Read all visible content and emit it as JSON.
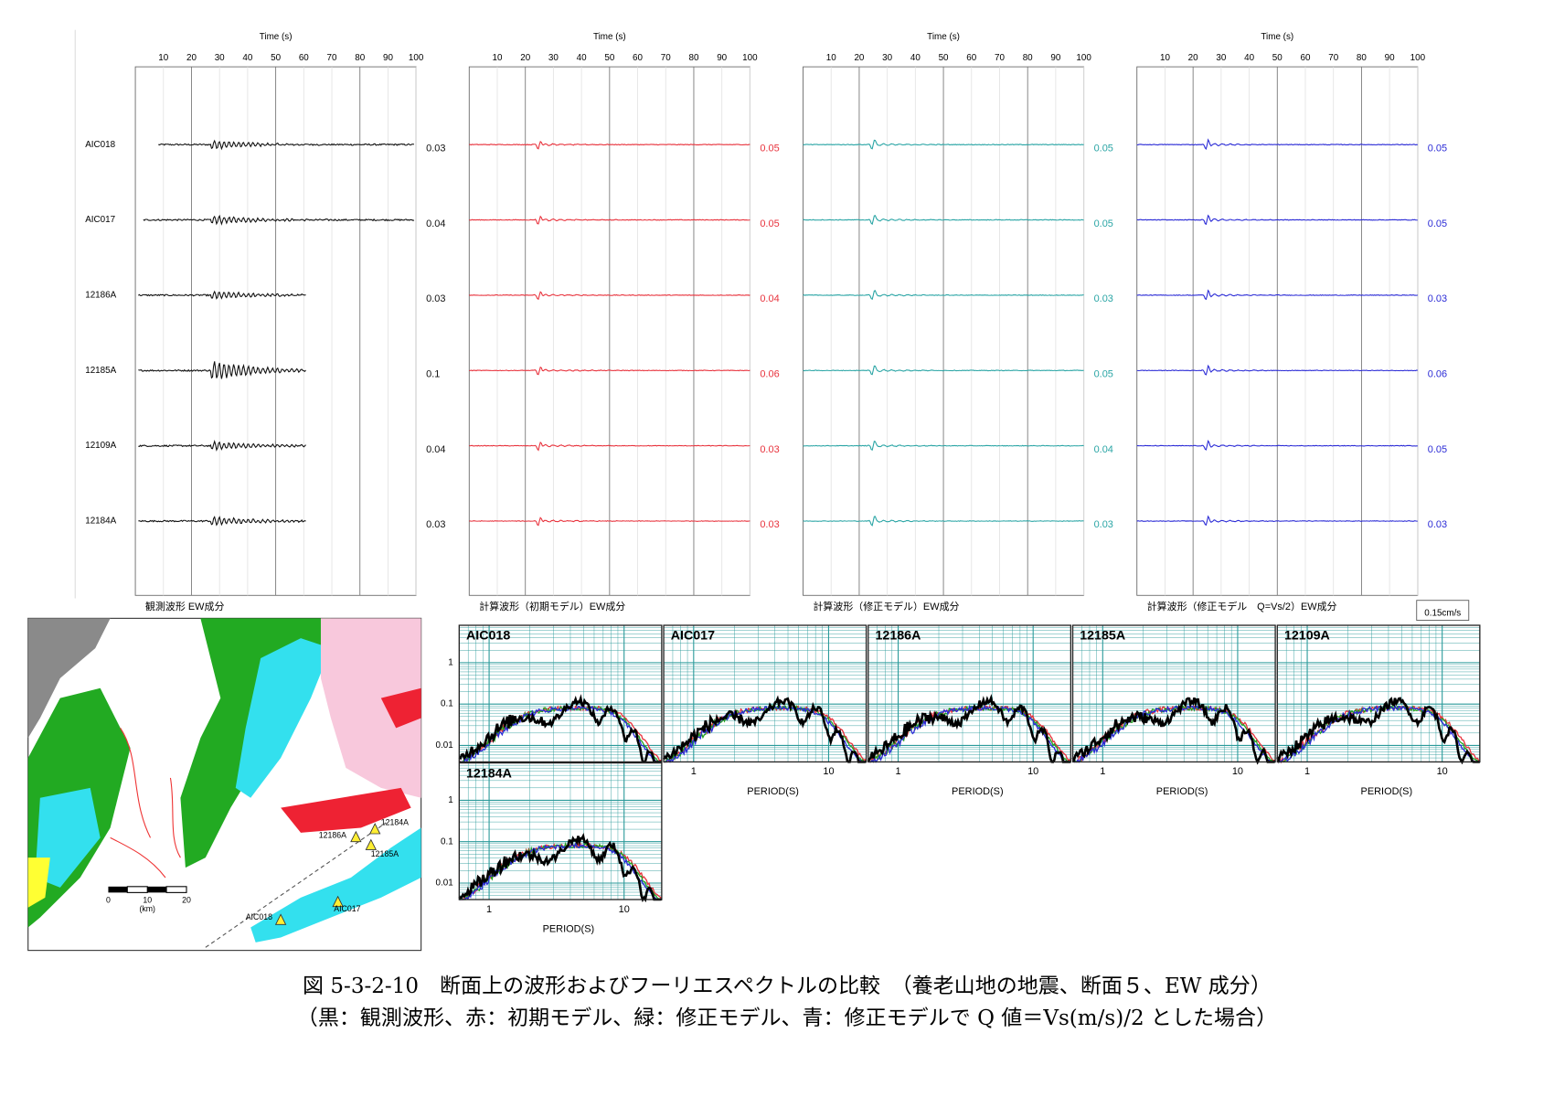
{
  "waveforms": {
    "axis_label": "Time (s)",
    "xlim": [
      0,
      100
    ],
    "xticks": [
      10,
      20,
      30,
      40,
      50,
      60,
      70,
      80,
      90,
      100
    ],
    "stations": [
      "AIC018",
      "AIC017",
      "12186A",
      "12185A",
      "12109A",
      "12184A"
    ],
    "panels": [
      {
        "title": "観測波形 EW成分",
        "color": "#111111",
        "amplitudes": [
          0.03,
          0.04,
          0.03,
          0.1,
          0.04,
          0.03
        ]
      },
      {
        "title": "計算波形（初期モデル）EW成分",
        "color": "#e8323c",
        "amplitudes": [
          0.05,
          0.05,
          0.04,
          0.06,
          0.03,
          0.03
        ]
      },
      {
        "title": "計算波形（修正モデル）EW成分",
        "color": "#2aa5a5",
        "amplitudes": [
          0.05,
          0.05,
          0.03,
          0.05,
          0.04,
          0.03
        ]
      },
      {
        "title": "計算波形（修正モデル　Q=Vs/2）EW成分",
        "color": "#2b2bd6",
        "amplitudes": [
          0.05,
          0.05,
          0.03,
          0.06,
          0.05,
          0.03
        ]
      }
    ],
    "scale_label": "0.15cm/s"
  },
  "spectra": {
    "xlabel": "PERIOD(S)",
    "log_scale": true,
    "xlim": [
      0.6,
      19
    ],
    "ylim": [
      0.004,
      8
    ],
    "xticks": [
      1,
      10
    ],
    "yticks": [
      1,
      0.1,
      0.01
    ],
    "grid_color": "#2a9a9a",
    "series_colors": [
      "#e8323c",
      "#22a022",
      "#2b2bd6",
      "#000000"
    ],
    "panels": [
      "AIC018",
      "AIC017",
      "12186A",
      "12185A",
      "12109A",
      "12184A"
    ]
  },
  "map": {
    "stations": [
      "AIC018",
      "AIC017",
      "12186A",
      "12185A",
      "12184A"
    ],
    "scale_ticks": [
      0,
      10,
      20
    ],
    "scale_unit": "(km)"
  },
  "caption": [
    "図 5-3-2-10　断面上の波形およびフーリエスペクトルの比較　（養老山地の地震、断面５、EW 成分）",
    "（黒：観測波形、赤：初期モデル、緑：修正モデル、青：修正モデルで Q 値＝Vs(m/s)/2 とした場合）"
  ]
}
